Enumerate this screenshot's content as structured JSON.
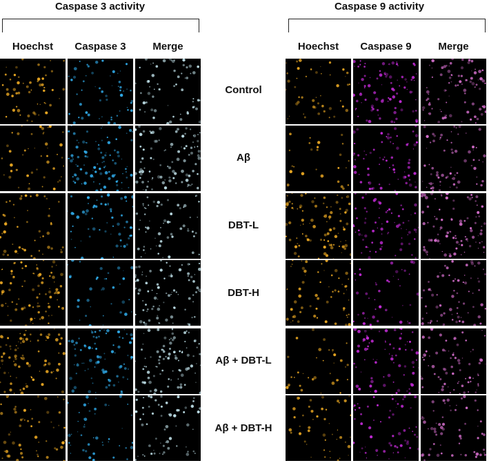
{
  "panels": [
    {
      "title": "Caspase 3 activity",
      "columns": [
        "Hoechst",
        "Caspase 3",
        "Merge"
      ],
      "colors": [
        "#e8a622",
        "#2fa8e6",
        "#b8d8e0"
      ]
    },
    {
      "title": "Caspase 9 activity",
      "columns": [
        "Hoechst",
        "Caspase 9",
        "Merge"
      ],
      "colors": [
        "#e8a622",
        "#c02ad4",
        "#d06cc8"
      ]
    }
  ],
  "rows": [
    {
      "label": "Control"
    },
    {
      "label": "Aβ"
    },
    {
      "label": "DBT-L"
    },
    {
      "label": "DBT-H"
    },
    {
      "label": "Aβ + DBT-L"
    },
    {
      "label": "Aβ + DBT-H"
    }
  ]
}
